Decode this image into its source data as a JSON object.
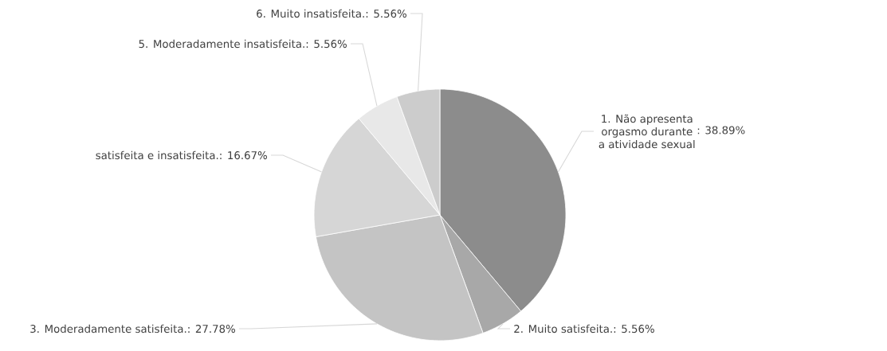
{
  "chart_data": {
    "type": "pie",
    "categories": [
      "1. Não apresenta orgasmo durante a atividade sexual",
      "2. Muito satisfeita.",
      "3. Moderadamente satisfeita.",
      "satisfeita e insatisfeita.",
      "5. Moderadamente insatisfeita.",
      "6. Muito insatisfeita."
    ],
    "values": [
      38.89,
      5.56,
      27.78,
      16.67,
      5.56,
      5.56
    ],
    "value_labels": [
      ": 38.89%",
      ": 5.56%",
      ": 27.78%",
      ": 16.67%",
      ": 5.56%",
      ": 5.56%"
    ],
    "colors": [
      "#8c8c8c",
      "#a8a8a8",
      "#c4c4c4",
      "#d6d6d6",
      "#e8e8e8",
      "#cccccc"
    ]
  }
}
